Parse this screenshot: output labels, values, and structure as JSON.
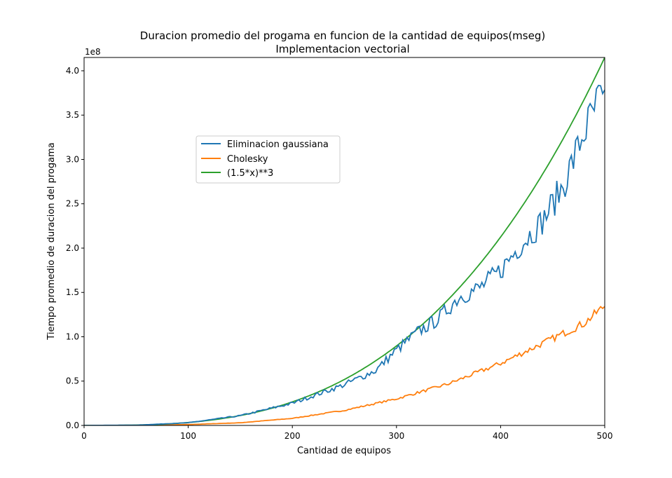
{
  "chart_data": {
    "type": "line",
    "title": "Duracion promedio del progama en funcion de la cantidad de equipos(mseg)",
    "subtitle": "Implementacion vectorial",
    "xlabel": "Cantidad de equipos",
    "ylabel": "Tiempo promedio de duracion del progama",
    "y_offset_label": "1e8",
    "xlim": [
      0,
      500
    ],
    "ylim": [
      0,
      4.15
    ],
    "y_scale_note": "y values in units of 1e8",
    "x_ticks": [
      0,
      100,
      200,
      300,
      400,
      500
    ],
    "y_ticks": [
      0.0,
      0.5,
      1.0,
      1.5,
      2.0,
      2.5,
      3.0,
      3.5,
      4.0
    ],
    "grid": false,
    "legend_position": "upper-left-center",
    "series": [
      {
        "name": "Eliminacion gaussiana",
        "color": "#1f77b4",
        "x": [
          0,
          50,
          100,
          150,
          200,
          250,
          280,
          300,
          320,
          340,
          360,
          380,
          400,
          420,
          440,
          460,
          470,
          480,
          490,
          495,
          500
        ],
        "values": [
          0,
          0.003,
          0.03,
          0.11,
          0.25,
          0.46,
          0.62,
          0.85,
          1.05,
          1.2,
          1.45,
          1.55,
          1.75,
          2.05,
          2.3,
          2.7,
          3.0,
          3.3,
          3.55,
          3.7,
          3.55
        ]
      },
      {
        "name": "Cholesky",
        "color": "#ff7f0e",
        "x": [
          0,
          50,
          100,
          150,
          200,
          250,
          300,
          350,
          400,
          450,
          480,
          490,
          500
        ],
        "values": [
          0,
          0.001,
          0.01,
          0.03,
          0.08,
          0.17,
          0.3,
          0.47,
          0.7,
          0.98,
          1.15,
          1.25,
          1.35
        ]
      },
      {
        "name": "(1.5*x)**3",
        "color": "#2ca02c",
        "formula": "(1.5*x)**3",
        "x_start": 0,
        "x_end": 500
      }
    ]
  }
}
